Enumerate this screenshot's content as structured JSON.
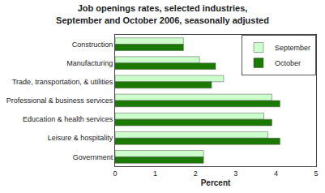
{
  "chart_data": {
    "type": "bar",
    "orientation": "horizontal",
    "title": "Job openings rates, selected industries,\nSeptember and October 2006, seasonally adjusted",
    "categories": [
      "Construction",
      "Manufacturing",
      "Trade, transportation, & utilities",
      "Professional & business services",
      "Education & health services",
      "Leisure & hospitality",
      "Government"
    ],
    "series": [
      {
        "name": "September",
        "color": "#ccffcc",
        "values": [
          1.7,
          2.1,
          2.7,
          3.9,
          3.7,
          3.8,
          2.2
        ]
      },
      {
        "name": "October",
        "color": "#1a7a00",
        "values": [
          1.7,
          2.5,
          2.4,
          4.1,
          3.9,
          4.1,
          2.2
        ]
      }
    ],
    "xlabel": "Percent",
    "xlim": [
      0,
      5
    ],
    "xticks": [
      0,
      1,
      2,
      3,
      4,
      5
    ],
    "grid": false,
    "legend": "upper right"
  }
}
